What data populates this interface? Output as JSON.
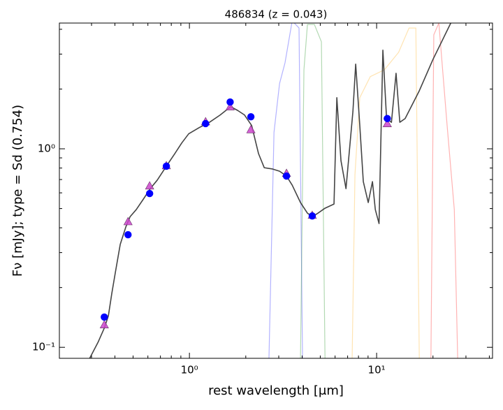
{
  "chart_data": {
    "type": "line",
    "title": "486834 (z = 0.043)",
    "xlabel": "rest wavelength [μm]",
    "ylabel": "Fν [mJy];  type = Sd (0.754)",
    "xscale": "log",
    "yscale": "log",
    "xlim": [
      0.202,
      41.6
    ],
    "ylim": [
      0.088,
      4.3
    ],
    "xticks": [
      {
        "value": 1,
        "label": "10⁰"
      },
      {
        "value": 10,
        "label": "10¹"
      }
    ],
    "yticks": [
      {
        "value": 0.1,
        "label": "10⁻¹"
      },
      {
        "value": 1,
        "label": "10⁰"
      }
    ],
    "xminorticks": [
      0.3,
      0.4,
      0.5,
      0.6,
      0.7,
      0.8,
      0.9,
      2,
      3,
      4,
      5,
      6,
      7,
      8,
      9,
      20,
      30,
      40
    ],
    "yminorticks": [
      0.2,
      0.3,
      0.4,
      0.5,
      0.6,
      0.7,
      0.8,
      0.9,
      2,
      3,
      4
    ],
    "series": [
      {
        "color": "#0000ff",
        "opacity": 0.3,
        "marker": "none",
        "x": [
          2.66,
          2.83,
          3.03,
          3.24,
          3.54,
          3.85,
          4.02
        ],
        "values": [
          0.0879,
          1.21,
          2.13,
          2.71,
          4.41,
          4.06,
          0.0879
        ]
      },
      {
        "color": "#008000",
        "opacity": 0.3,
        "marker": "none",
        "x": [
          3.92,
          4.09,
          4.27,
          4.65,
          5.07,
          5.3
        ],
        "values": [
          0.0879,
          2.5,
          4.23,
          4.23,
          3.46,
          0.0879
        ]
      },
      {
        "color": "#ffa500",
        "opacity": 0.3,
        "marker": "none",
        "x": [
          7.4,
          7.66,
          8.13,
          9.25,
          11.0,
          13.1,
          14.9,
          16.2,
          16.9
        ],
        "values": [
          0.0879,
          0.741,
          1.81,
          2.31,
          2.5,
          3.06,
          4.06,
          4.06,
          0.0879
        ]
      },
      {
        "color": "#ff0000",
        "opacity": 0.3,
        "marker": "none",
        "x": [
          19.5,
          20.2,
          21.5,
          23.8,
          26.0,
          27.1
        ],
        "values": [
          0.0879,
          3.75,
          4.3,
          1.31,
          0.494,
          0.0879
        ]
      },
      {
        "color": "#444444",
        "opacity": 1,
        "marker": "none",
        "x": [
          0.293,
          0.325,
          0.351,
          0.369,
          0.385,
          0.402,
          0.427,
          0.457,
          0.482,
          0.52,
          0.567,
          0.618,
          0.673,
          0.766,
          0.835,
          0.91,
          0.991,
          1.13,
          1.28,
          1.46,
          1.66,
          1.81,
          1.97,
          2.15,
          2.34,
          2.51,
          2.78,
          3.03,
          3.3,
          3.54,
          3.92,
          4.27,
          4.54,
          4.86,
          5.3,
          5.92,
          6.13,
          6.45,
          6.86,
          7.47,
          7.73,
          8.13,
          8.49,
          9.02,
          9.5,
          9.84,
          10.3,
          10.8,
          11.3,
          12.0,
          12.7,
          13.3,
          14.2,
          16.9,
          20.0,
          24.9
        ],
        "values": [
          0.0879,
          0.106,
          0.125,
          0.144,
          0.187,
          0.238,
          0.33,
          0.403,
          0.455,
          0.494,
          0.557,
          0.63,
          0.695,
          0.837,
          0.945,
          1.07,
          1.19,
          1.28,
          1.36,
          1.48,
          1.63,
          1.56,
          1.48,
          1.31,
          0.945,
          0.803,
          0.791,
          0.771,
          0.729,
          0.656,
          0.536,
          0.474,
          0.455,
          0.474,
          0.502,
          0.527,
          1.81,
          0.871,
          0.63,
          1.54,
          2.67,
          1.31,
          0.683,
          0.536,
          0.683,
          0.494,
          0.42,
          3.14,
          1.42,
          1.36,
          2.4,
          1.36,
          1.42,
          1.96,
          2.82,
          4.3
        ]
      },
      {
        "color": "#cc44cc",
        "opacity": 0.85,
        "marker": "triangle",
        "x": [
          0.351,
          0.47,
          0.613,
          0.753,
          1.22,
          1.65,
          2.13,
          3.3,
          4.53,
          11.4
        ],
        "values": [
          0.13,
          0.43,
          0.651,
          0.823,
          1.37,
          1.63,
          1.25,
          0.753,
          0.463,
          1.34
        ]
      },
      {
        "color": "#0000ff",
        "opacity": 1,
        "marker": "circle",
        "x": [
          0.351,
          0.47,
          0.613,
          0.753,
          1.22,
          1.65,
          2.13,
          3.3,
          4.53,
          11.4
        ],
        "values": [
          0.142,
          0.369,
          0.595,
          0.817,
          1.34,
          1.72,
          1.45,
          0.729,
          0.459,
          1.42
        ]
      }
    ]
  }
}
